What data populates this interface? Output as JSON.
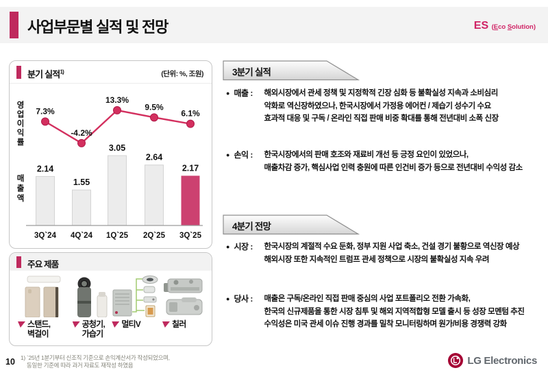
{
  "header": {
    "title": "사업부문별 실적 및 전망",
    "division_code": "ES",
    "division_sub": {
      "prefix": "(",
      "e": "E",
      "mid": "co ",
      "s": "S",
      "suffix": "olution)"
    }
  },
  "quarterly_panel": {
    "title": "분기 실적",
    "footnote_ref": "1)",
    "unit_label": "(단위: %, 조원)",
    "opm_axis_label": "영업이익률",
    "revenue_axis_label": "매출액"
  },
  "chart_data": {
    "type": "bar",
    "subtype": "combo bar + line",
    "title": "분기 실적",
    "unit_note": "(단위: %, 조원)",
    "categories": [
      "3Q`24",
      "4Q`24",
      "1Q`25",
      "2Q`25",
      "3Q`25"
    ],
    "series": [
      {
        "name": "영업이익률",
        "type": "line",
        "unit": "%",
        "values": [
          7.3,
          -4.2,
          13.3,
          9.5,
          6.1
        ],
        "labels": [
          "7.3%",
          "-4.2%",
          "13.3%",
          "9.5%",
          "6.1%"
        ]
      },
      {
        "name": "매출액",
        "type": "bar",
        "unit": "조원",
        "values": [
          2.14,
          1.55,
          3.05,
          2.64,
          2.17
        ],
        "labels": [
          "2.14",
          "1.55",
          "3.05",
          "2.64",
          "2.17"
        ],
        "highlight_index": 4
      }
    ],
    "legend_position": "none",
    "grid": false
  },
  "products": {
    "title": "주요 제품",
    "items": [
      {
        "label_line1": "스탠드,",
        "label_line2": "벽걸이",
        "icon": "stand-wall-aircon"
      },
      {
        "label_line1": "공청기,",
        "label_line2": "가습기",
        "icon": "air-purifier-humidifier"
      },
      {
        "label_line1": "멀티V",
        "label_line2": "",
        "icon": "multi-v-system"
      },
      {
        "label_line1": "칠러",
        "label_line2": "",
        "icon": "chiller"
      }
    ]
  },
  "q3_section": {
    "title": "3분기 실적",
    "bullets": [
      {
        "label": "매출 :",
        "lines": [
          "해외시장에서 관세 정책 및 지정학적 긴장 심화 등 불확실성 지속과 소비심리",
          "악화로 역신장하였으나, 한국시장에서 가정용 에어컨 / 제습기 성수기 수요",
          "효과적 대응 및 구독 / 온라인 직접 판매 비중 확대를 통해 전년대비 소폭 신장"
        ]
      },
      {
        "label": "손익 :",
        "lines": [
          "한국시장에서의 판매 호조와 재료비 개선 등 긍정 요인이 있었으나,",
          "매출차감 증가, 핵심사업 인력 충원에 따른 인건비 증가 등으로 전년대비 수익성 감소"
        ]
      }
    ]
  },
  "q4_section": {
    "title": "4분기 전망",
    "bullets": [
      {
        "label": "시장 :",
        "lines": [
          "한국시장의 계절적 수요 둔화, 정부 지원 사업 축소, 건설 경기 불황으로 역신장 예상",
          "해외시장 또한 지속적인 트럼프 관세 정책으로 시장의 불확실성 지속 우려"
        ]
      },
      {
        "label": "당사 :",
        "lines": [
          "매출은 구독/온라인 직접 판매 중심의 사업 포트폴리오 전환 가속화,",
          "한국의 신규제품을 통한 시장 침투 및 해외 지역적합형 모델 출시 등 성장 모멘텀 추진",
          "수익성은 미국 관세 이슈 진행 경과를 밀착 모니터링하며 원가/비용 경쟁력 강화"
        ]
      }
    ]
  },
  "footer": {
    "page_number": "10",
    "note_lines": [
      "1) `25년 1분기부터 신조직 기준으로 손익계산서가 작성되었으며,",
      "동일한 기준에 따라 과거 자료도 재작성 하였음"
    ],
    "logo_text": "LG Electronics"
  },
  "colors": {
    "accent": "#bf2a5e",
    "bar_highlight": "#cc4170",
    "bar_default": "#ececec",
    "line": "#d32f5e",
    "header_band": "#f3f3f3",
    "lg_logo_red": "#a50034"
  }
}
